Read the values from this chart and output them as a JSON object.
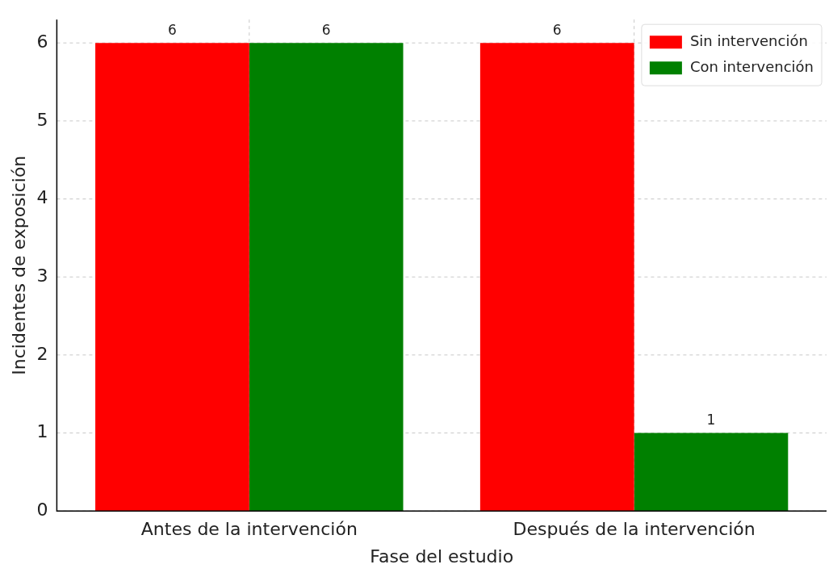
{
  "chart_data": {
    "type": "bar",
    "categories": [
      "Antes de la intervención",
      "Después de la intervención"
    ],
    "series": [
      {
        "name": "Sin intervención",
        "color": "#ff0000",
        "values": [
          6,
          6
        ]
      },
      {
        "name": "Con intervención",
        "color": "#008000",
        "values": [
          6,
          1
        ]
      }
    ],
    "xlabel": "Fase del estudio",
    "ylabel": "Incidentes de exposición",
    "ylim": [
      0,
      6.3
    ],
    "yticks": [
      0,
      1,
      2,
      3,
      4,
      5,
      6
    ],
    "grid": true,
    "legend": "top right",
    "data_labels": true
  }
}
